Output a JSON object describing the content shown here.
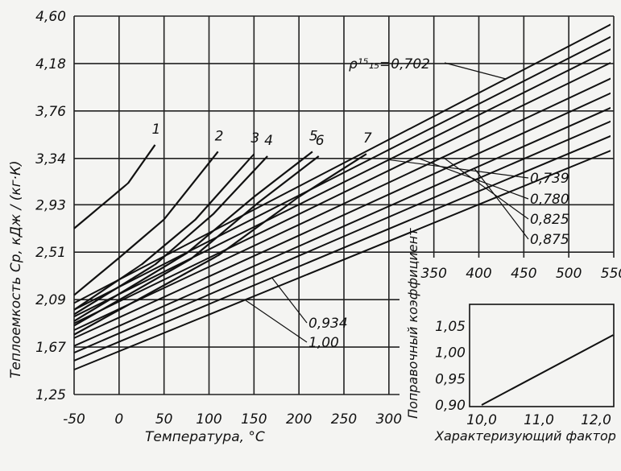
{
  "chart_data": [
    {
      "type": "line",
      "xlabel": "Температура, °C",
      "ylabel": "Теплоемкость Cp, кДж / (кг·К)",
      "xlim": [
        -50,
        300
      ],
      "ylim": [
        1.25,
        4.6
      ],
      "x_ticks": [
        "-50",
        "0",
        "50",
        "100",
        "150",
        "200",
        "250",
        "300"
      ],
      "y_ticks": [
        "4,60",
        "4,18",
        "3,76",
        "3,34",
        "2,93",
        "2,51",
        "2,09",
        "1,67",
        "1,25"
      ],
      "y_tick_values": [
        4.6,
        4.18,
        3.76,
        3.34,
        2.93,
        2.51,
        2.09,
        1.67,
        1.25
      ],
      "x2_ticks": [
        "350",
        "400",
        "450",
        "500",
        "550"
      ],
      "x2_tick_values": [
        350,
        400,
        450,
        500,
        550
      ],
      "density_label": "ρ¹⁵₁₅=0,702",
      "grid": true,
      "density_series": [
        {
          "label": "0,702",
          "x": [
            -50,
            550
          ],
          "y": [
            2.06,
            4.54
          ]
        },
        {
          "label": "",
          "x": [
            -50,
            550
          ],
          "y": [
            2.0,
            4.43
          ]
        },
        {
          "label": "0,739",
          "x": [
            -50,
            550
          ],
          "y": [
            1.94,
            4.32
          ]
        },
        {
          "label": "0,780",
          "x": [
            -50,
            550
          ],
          "y": [
            1.88,
            4.2
          ]
        },
        {
          "label": "0,825",
          "x": [
            -50,
            550
          ],
          "y": [
            1.82,
            4.06
          ]
        },
        {
          "label": "",
          "x": [
            -50,
            550
          ],
          "y": [
            1.75,
            3.93
          ]
        },
        {
          "label": "0,875",
          "x": [
            -50,
            550
          ],
          "y": [
            1.68,
            3.8
          ]
        },
        {
          "label": "",
          "x": [
            -50,
            550
          ],
          "y": [
            1.62,
            3.68
          ]
        },
        {
          "label": "0,934",
          "x": [
            -50,
            550
          ],
          "y": [
            1.55,
            3.55
          ]
        },
        {
          "label": "1,00",
          "x": [
            -50,
            550
          ],
          "y": [
            1.47,
            3.42
          ]
        }
      ],
      "boundary_curves": [
        {
          "label": "1",
          "x": [
            -50,
            -20,
            10,
            40
          ],
          "y": [
            2.72,
            2.92,
            3.12,
            3.46
          ]
        },
        {
          "label": "2",
          "x": [
            -50,
            0,
            50,
            110
          ],
          "y": [
            2.13,
            2.46,
            2.8,
            3.4
          ]
        },
        {
          "label": "3",
          "x": [
            -50,
            25,
            85,
            150
          ],
          "y": [
            2.0,
            2.4,
            2.8,
            3.38
          ]
        },
        {
          "label": "4",
          "x": [
            -50,
            40,
            105,
            165
          ],
          "y": [
            1.96,
            2.4,
            2.85,
            3.36
          ]
        },
        {
          "label": "5",
          "x": [
            -50,
            75,
            150,
            215
          ],
          "y": [
            1.9,
            2.5,
            3.0,
            3.4
          ]
        },
        {
          "label": "6",
          "x": [
            -50,
            80,
            155,
            222
          ],
          "y": [
            1.86,
            2.45,
            2.95,
            3.36
          ]
        },
        {
          "label": "7",
          "x": [
            -50,
            110,
            200,
            275
          ],
          "y": [
            1.78,
            2.48,
            3.0,
            3.38
          ]
        }
      ]
    },
    {
      "type": "line",
      "xlabel": "Характеризующий фактор",
      "ylabel": "Поправочный коэффициент",
      "xlim": [
        10.0,
        12.5
      ],
      "ylim": [
        0.9,
        1.07
      ],
      "x_ticks": [
        "10,0",
        "11,0",
        "12,0"
      ],
      "x_tick_values": [
        10.0,
        11.0,
        12.0
      ],
      "y_ticks": [
        "1,05",
        "1,00",
        "0,95",
        "0,90"
      ],
      "y_tick_values": [
        1.05,
        1.0,
        0.95,
        0.9
      ],
      "series": [
        {
          "x": [
            10.0,
            12.3
          ],
          "y": [
            0.9,
            1.033
          ]
        }
      ]
    }
  ]
}
